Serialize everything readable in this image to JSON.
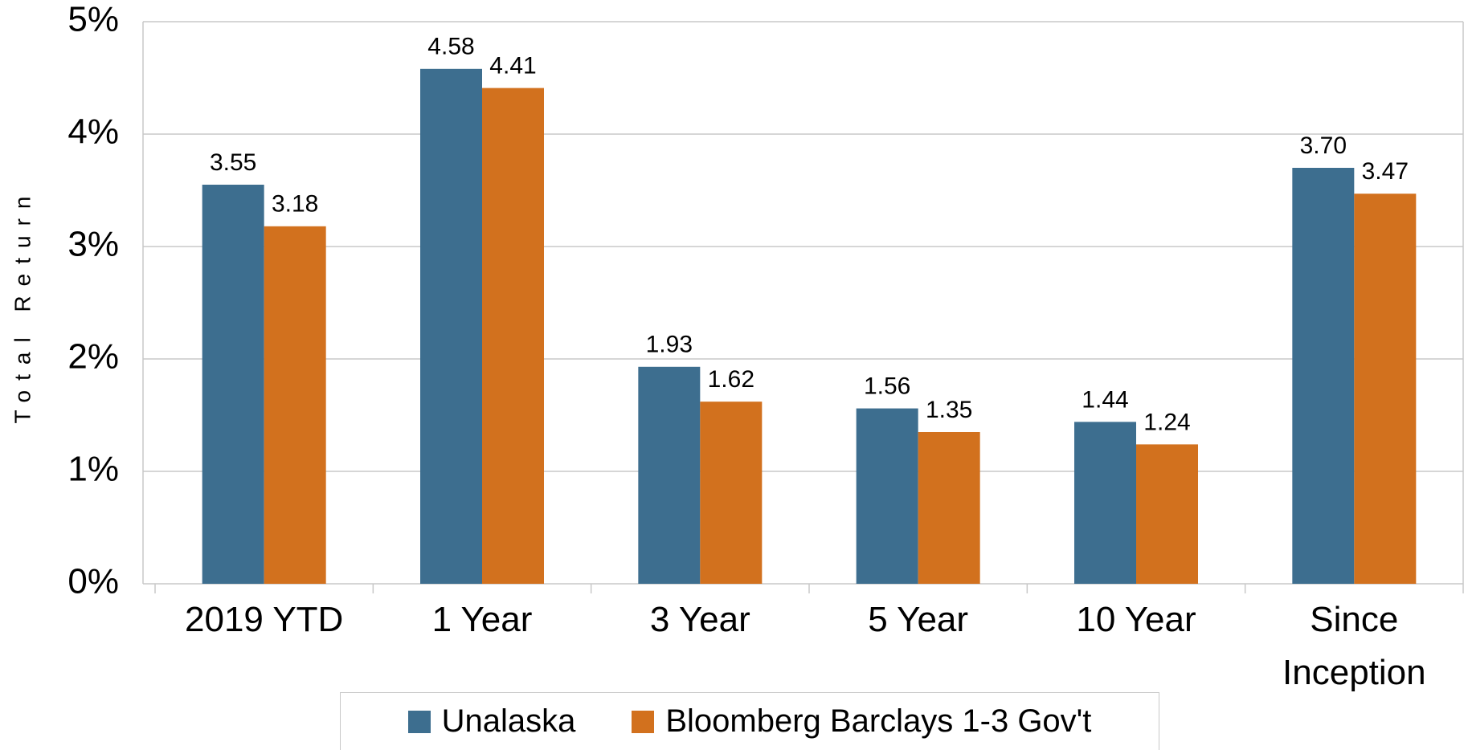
{
  "chart_data": {
    "type": "bar",
    "y_label": "Total Return",
    "categories": [
      "2019 YTD",
      "1 Year",
      "3 Year",
      "5 Year",
      "10 Year",
      "Since Inception"
    ],
    "series": [
      {
        "name": "Unalaska",
        "color": "#3d6e8f",
        "values": [
          3.55,
          4.58,
          1.93,
          1.56,
          1.44,
          3.7
        ],
        "value_labels": [
          "3.55",
          "4.58",
          "1.93",
          "1.56",
          "1.44",
          "3.70"
        ]
      },
      {
        "name": "Bloomberg Barclays 1-3 Gov't",
        "color": "#d2711e",
        "values": [
          3.18,
          4.41,
          1.62,
          1.35,
          1.24,
          3.47
        ],
        "value_labels": [
          "3.18",
          "4.41",
          "1.62",
          "1.35",
          "1.24",
          "3.47"
        ]
      }
    ],
    "ylim": [
      0,
      5
    ],
    "yticks": [
      {
        "value": 0,
        "label": "0%"
      },
      {
        "value": 1,
        "label": "1%"
      },
      {
        "value": 2,
        "label": "2%"
      },
      {
        "value": 3,
        "label": "3%"
      },
      {
        "value": 4,
        "label": "4%"
      },
      {
        "value": 5,
        "label": "5%"
      }
    ],
    "grid": true,
    "legend": "bottom"
  }
}
